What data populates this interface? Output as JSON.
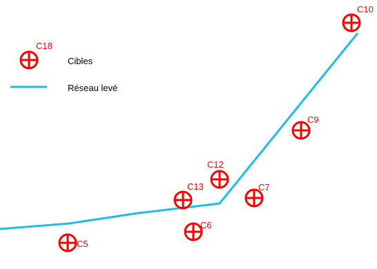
{
  "legend": {
    "targets_label": "Cibles",
    "network_label": "Réseau levé"
  },
  "colors": {
    "target": "#ff0000",
    "network": "#1ebde9",
    "text": "#000000"
  },
  "targets": [
    {
      "id": "C5"
    },
    {
      "id": "C6"
    },
    {
      "id": "C7"
    },
    {
      "id": "C9"
    },
    {
      "id": "C10"
    },
    {
      "id": "C12"
    },
    {
      "id": "C13"
    },
    {
      "id": "C18"
    }
  ]
}
